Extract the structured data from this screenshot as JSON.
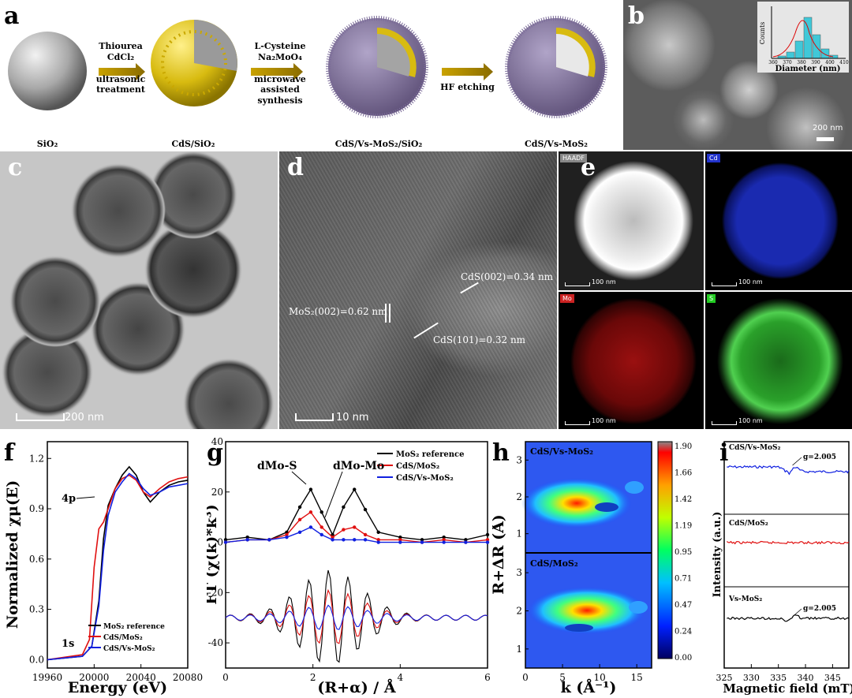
{
  "panels": {
    "a": {
      "label": "a",
      "steps": [
        {
          "line1": "Thiourea",
          "line2": "CdCl₂",
          "line3": "ultrasonic",
          "line4": "treatment"
        },
        {
          "line1": "L-Cysteine",
          "line2": "Na₂MoO₄",
          "line3": "microwave",
          "line4": "assisted synthesis"
        },
        {
          "line1": "HF etching",
          "line2": "",
          "line3": "",
          "line4": ""
        }
      ],
      "captions": [
        "SiO₂",
        "CdS/SiO₂",
        "CdS/Vs-MoS₂/SiO₂",
        "CdS/Vs-MoS₂"
      ]
    },
    "b": {
      "label": "b",
      "scale": "200 nm",
      "inset_xlabel": "Diameter (nm)",
      "inset_ylabel": "Counts",
      "inset_ticks": [
        "360",
        "370",
        "380",
        "390",
        "400",
        "410"
      ]
    },
    "c": {
      "label": "c",
      "scale": "200 nm"
    },
    "d": {
      "label": "d",
      "scale": "10 nm",
      "ann1": "CdS(002)=0.34 nm",
      "ann2": "MoS₂(002)=0.62 nm",
      "ann3": "CdS(101)=0.32 nm"
    },
    "e": {
      "label": "e",
      "tags": [
        "HAADF",
        "Cd",
        "Mo",
        "S"
      ],
      "scale": "100 nm"
    },
    "f": {
      "label": "f"
    },
    "g": {
      "label": "g"
    },
    "h": {
      "label": "h"
    },
    "i": {
      "label": "i"
    }
  },
  "colors": {
    "black": "#000000",
    "red": "#e01010",
    "blue": "#1020e0",
    "cds": "#d4b800",
    "mos2": "#8a7aa8"
  },
  "chart_data": [
    {
      "type": "line",
      "panel": "f",
      "xlabel": "Energy (eV)",
      "ylabel": "Normalized χμ(E)",
      "xlim": [
        19960,
        20080
      ],
      "ylim": [
        -0.05,
        1.3
      ],
      "xticks": [
        19960,
        20000,
        20040,
        20080
      ],
      "yticks": [
        0.0,
        0.3,
        0.6,
        0.9,
        1.2
      ],
      "annotations": [
        "4p",
        "1s"
      ],
      "series": [
        {
          "name": "MoS₂ reference",
          "color": "#000000",
          "x": [
            19960,
            19990,
            19998,
            20004,
            20008,
            20012,
            20018,
            20024,
            20030,
            20036,
            20042,
            20048,
            20056,
            20064,
            20072,
            20080
          ],
          "y": [
            0.0,
            0.02,
            0.08,
            0.35,
            0.72,
            0.92,
            1.02,
            1.1,
            1.15,
            1.1,
            1.0,
            0.94,
            1.0,
            1.04,
            1.06,
            1.07
          ]
        },
        {
          "name": "CdS/MoS₂",
          "color": "#e01010",
          "x": [
            19960,
            19990,
            19996,
            20000,
            20004,
            20008,
            20012,
            20018,
            20024,
            20030,
            20036,
            20042,
            20048,
            20056,
            20064,
            20072,
            20080
          ],
          "y": [
            0.0,
            0.03,
            0.12,
            0.55,
            0.78,
            0.82,
            0.9,
            1.02,
            1.08,
            1.1,
            1.07,
            1.0,
            0.97,
            1.02,
            1.06,
            1.08,
            1.09
          ]
        },
        {
          "name": "CdS/Vs-MoS₂",
          "color": "#1020e0",
          "x": [
            19960,
            19990,
            19998,
            20004,
            20008,
            20012,
            20018,
            20024,
            20030,
            20036,
            20042,
            20048,
            20056,
            20064,
            20072,
            20080
          ],
          "y": [
            0.0,
            0.02,
            0.08,
            0.32,
            0.65,
            0.86,
            1.0,
            1.06,
            1.11,
            1.08,
            1.02,
            0.98,
            1.0,
            1.03,
            1.04,
            1.05
          ]
        }
      ]
    },
    {
      "type": "line",
      "panel": "g",
      "xlabel": "(R+α) / Å",
      "ylabel": "FT (χ(k)*k³)",
      "xlim": [
        0,
        6
      ],
      "ylim": [
        -50,
        40
      ],
      "xticks": [
        0,
        2,
        4,
        6
      ],
      "yticks": [
        -40,
        -20,
        0,
        20,
        40
      ],
      "annotations": [
        "dMo-S",
        "dMo-Mo"
      ],
      "series": [
        {
          "name": "MoS₂ reference",
          "color": "#000000",
          "x": [
            0,
            0.5,
            1.0,
            1.4,
            1.7,
            1.95,
            2.2,
            2.45,
            2.7,
            2.95,
            3.2,
            3.5,
            4.0,
            4.5,
            5.0,
            5.5,
            6.0
          ],
          "y": [
            1,
            2,
            1,
            4,
            14,
            21,
            12,
            3,
            14,
            21,
            13,
            4,
            2,
            1,
            2,
            1,
            3
          ]
        },
        {
          "name": "CdS/MoS₂",
          "color": "#e01010",
          "x": [
            0,
            0.5,
            1.0,
            1.4,
            1.7,
            1.95,
            2.2,
            2.45,
            2.7,
            2.95,
            3.2,
            3.5,
            4.0,
            4.5,
            5.0,
            5.5,
            6.0
          ],
          "y": [
            0,
            1,
            1,
            3,
            9,
            12,
            6,
            2,
            5,
            6,
            3,
            1,
            1,
            0,
            1,
            0,
            1
          ]
        },
        {
          "name": "CdS/Vs-MoS₂",
          "color": "#1020e0",
          "x": [
            0,
            0.5,
            1.0,
            1.4,
            1.7,
            1.95,
            2.2,
            2.45,
            2.7,
            2.95,
            3.2,
            3.5,
            4.0,
            4.5,
            5.0,
            5.5,
            6.0
          ],
          "y": [
            0,
            1,
            1,
            2,
            4,
            6,
            3,
            1,
            1,
            1,
            1,
            0,
            0,
            0,
            0,
            0,
            0
          ]
        }
      ]
    },
    {
      "type": "heatmap",
      "panel": "h",
      "xlabel": "k (Å⁻¹)",
      "ylabel": "R+ΔR (Å)",
      "xlim": [
        0,
        17
      ],
      "ylim": [
        0.5,
        3.5
      ],
      "xticks": [
        0,
        5,
        10,
        15
      ],
      "yticks": [
        1,
        2,
        3
      ],
      "colorbar_ticks": [
        "0.00",
        "0.24",
        "0.47",
        "0.71",
        "0.95",
        "1.19",
        "1.42",
        "1.66",
        "1.90"
      ],
      "maps": [
        {
          "name": "CdS/Vs-MoS₂",
          "peak_k": 7,
          "peak_r": 1.85
        },
        {
          "name": "CdS/MoS₂",
          "peak_k": 8.5,
          "peak_r": 1.95
        }
      ]
    },
    {
      "type": "line",
      "panel": "i",
      "xlabel": "Magnetic field (mT)",
      "ylabel": "Intensity (a.u.)",
      "xlim": [
        325,
        348
      ],
      "xticks": [
        325,
        330,
        335,
        340,
        345
      ],
      "series": [
        {
          "name": "CdS/Vs-MoS₂",
          "color": "#1020e0",
          "annotation": "g=2.005"
        },
        {
          "name": "CdS/MoS₂",
          "color": "#e01010",
          "annotation": ""
        },
        {
          "name": "Vs-MoS₂",
          "color": "#000000",
          "annotation": "g=2.005"
        }
      ]
    }
  ]
}
